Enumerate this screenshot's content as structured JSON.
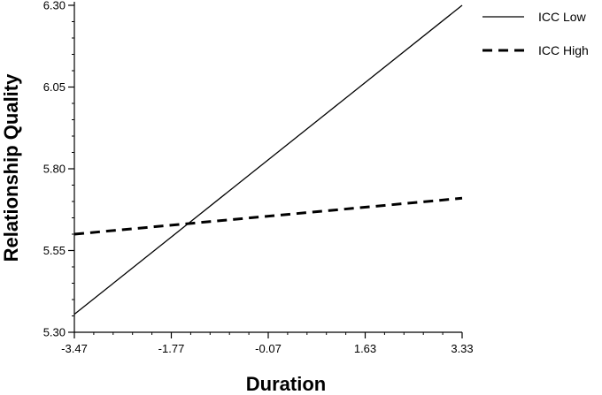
{
  "chart_data": {
    "type": "line",
    "xlabel": "Duration",
    "ylabel": "Relationship Quality",
    "xlim": [
      -3.47,
      3.33
    ],
    "ylim": [
      5.3,
      6.3
    ],
    "x_ticks": [
      "-3.47",
      "-1.77",
      "-0.07",
      "1.63",
      "3.33"
    ],
    "y_ticks": [
      "5.30",
      "5.55",
      "5.80",
      "6.05",
      "6.30"
    ],
    "legend_position": "top-right",
    "grid": false,
    "series": [
      {
        "name": "ICC Low",
        "style": "solid",
        "x": [
          -3.47,
          3.33
        ],
        "y": [
          5.355,
          6.3
        ]
      },
      {
        "name": "ICC High",
        "style": "dashed",
        "x": [
          -3.47,
          3.33
        ],
        "y": [
          5.6,
          5.71
        ]
      }
    ]
  }
}
